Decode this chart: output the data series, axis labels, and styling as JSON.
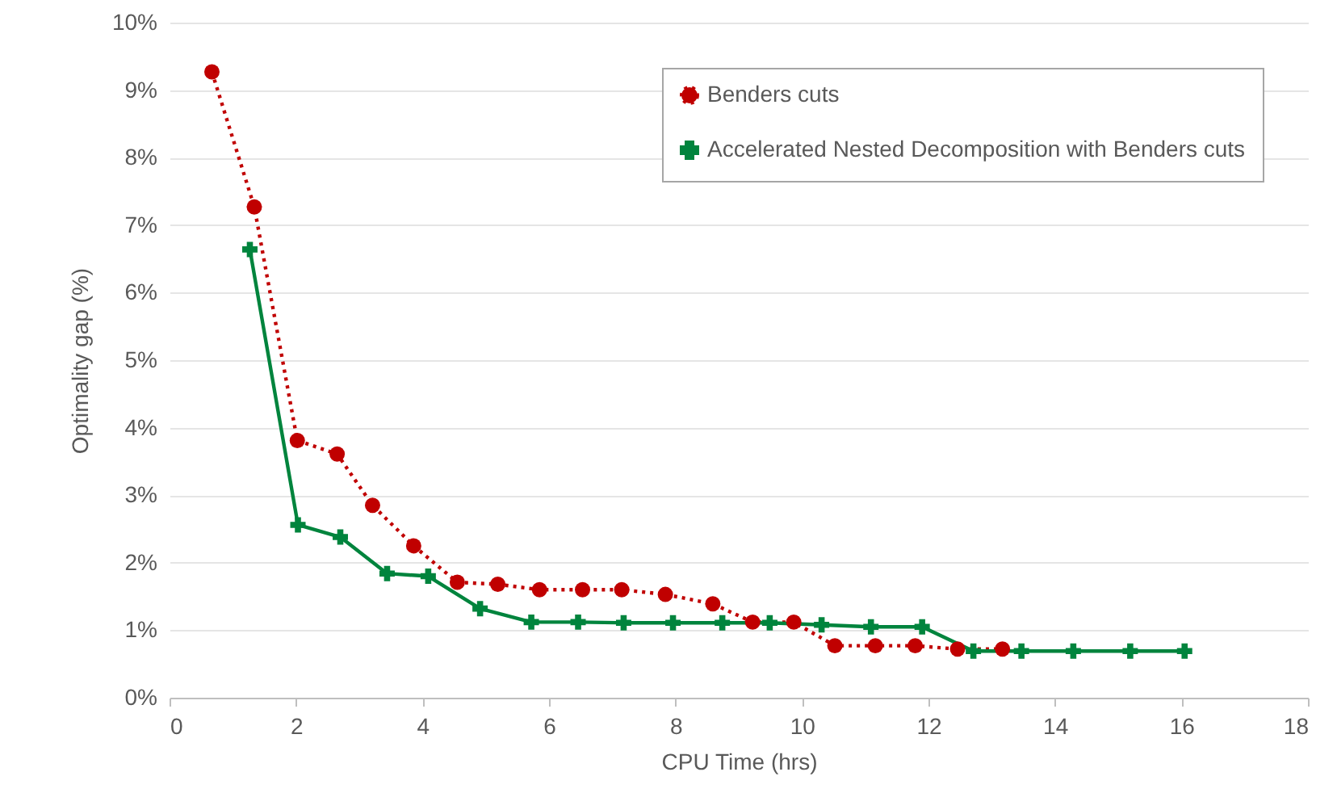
{
  "chart_data": {
    "type": "line",
    "xlabel": "CPU Time (hrs)",
    "ylabel": "Optimality gap (%)",
    "xlim": [
      0,
      18
    ],
    "xticks": [
      0,
      2,
      4,
      6,
      8,
      10,
      12,
      14,
      16,
      18
    ],
    "ylim": [
      0,
      10
    ],
    "yticks": [
      {
        "value": 0,
        "label": "0%"
      },
      {
        "value": 1,
        "label": "1%"
      },
      {
        "value": 2,
        "label": "2%"
      },
      {
        "value": 3,
        "label": "3%"
      },
      {
        "value": 4,
        "label": "4%"
      },
      {
        "value": 5,
        "label": "5%"
      },
      {
        "value": 6,
        "label": "6%"
      },
      {
        "value": 7,
        "label": "7%"
      },
      {
        "value": 8,
        "label": "8%"
      },
      {
        "value": 9,
        "label": "9%"
      },
      {
        "value": 10,
        "label": "10%"
      }
    ],
    "grid": "y",
    "legend": "top right",
    "series": [
      {
        "name": "Benders cuts",
        "color": "#c00000",
        "marker": "circle",
        "line_style": "dotted",
        "x": [
          0.67,
          1.34,
          2.02,
          2.65,
          3.21,
          3.86,
          4.55,
          5.19,
          5.85,
          6.53,
          7.15,
          7.84,
          8.59,
          9.22,
          9.87,
          10.52,
          11.16,
          11.79,
          12.46,
          13.17
        ],
        "values": [
          9.27,
          7.27,
          3.81,
          3.61,
          2.85,
          2.25,
          1.71,
          1.68,
          1.6,
          1.6,
          1.6,
          1.53,
          1.39,
          1.12,
          1.12,
          0.77,
          0.77,
          0.77,
          0.72,
          0.72
        ]
      },
      {
        "name": "Accelerated Nested Decomposition with Benders cuts",
        "color": "#00843d",
        "marker": "cross",
        "line_style": "solid",
        "x": [
          1.27,
          2.03,
          2.7,
          3.44,
          4.09,
          4.91,
          5.72,
          6.46,
          7.18,
          7.96,
          8.74,
          9.49,
          10.31,
          11.09,
          11.9,
          12.71,
          13.47,
          14.29,
          15.19,
          16.05
        ],
        "values": [
          6.64,
          2.56,
          2.38,
          1.84,
          1.8,
          1.32,
          1.12,
          1.12,
          1.11,
          1.11,
          1.11,
          1.11,
          1.08,
          1.05,
          1.05,
          0.69,
          0.69,
          0.69,
          0.69,
          0.69
        ]
      }
    ]
  }
}
